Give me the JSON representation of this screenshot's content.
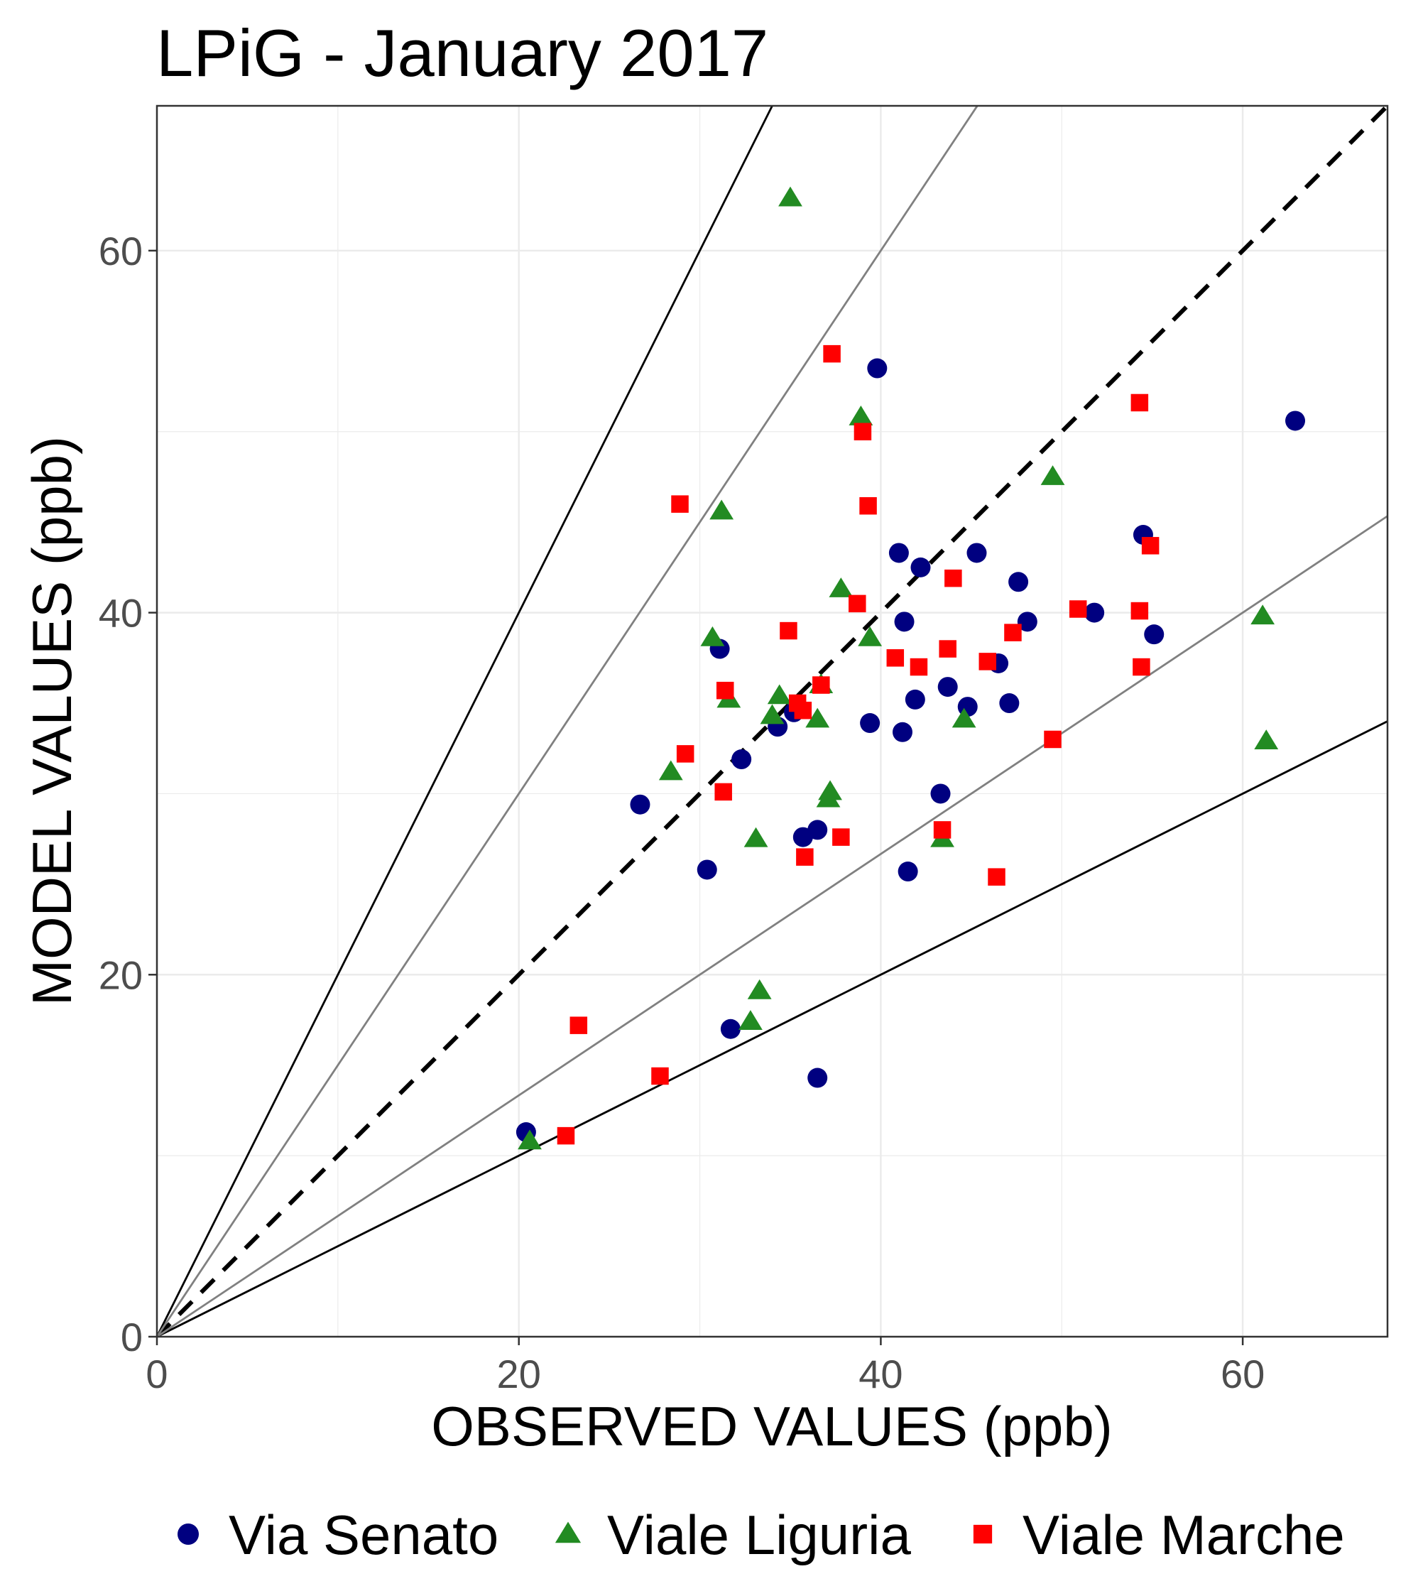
{
  "chart_data": {
    "type": "scatter",
    "title": "LPiG - January 2017",
    "xlabel": "OBSERVED VALUES (ppb)",
    "ylabel": "MODEL VALUES (ppb)",
    "xlim": [
      0,
      68
    ],
    "ylim": [
      0,
      68
    ],
    "x_ticks": [
      0,
      20,
      40,
      60
    ],
    "y_ticks": [
      0,
      20,
      40,
      60
    ],
    "x_tick_labels": [
      "0",
      "20",
      "40",
      "60"
    ],
    "y_tick_labels": [
      "0",
      "20",
      "40",
      "60"
    ],
    "grid": true,
    "legend_position": "bottom",
    "reference_lines": [
      {
        "name": "1:1",
        "slope": 1,
        "style": "dashed",
        "color": "#000000"
      },
      {
        "name": "factor-2-upper",
        "slope": 2,
        "style": "solid",
        "color": "#000000"
      },
      {
        "name": "factor-2-lower",
        "slope": 0.5,
        "style": "solid",
        "color": "#000000"
      },
      {
        "name": "factor-1.5-upper",
        "slope": 1.5,
        "style": "solid",
        "color": "#808080"
      },
      {
        "name": "factor-1.5-lower",
        "slope": 0.6667,
        "style": "solid",
        "color": "#808080"
      }
    ],
    "series": [
      {
        "name": "Via Senato",
        "marker": "circle",
        "color": "#000080",
        "points": [
          [
            20.4,
            11.3
          ],
          [
            26.7,
            29.4
          ],
          [
            30.4,
            25.8
          ],
          [
            31.1,
            38.0
          ],
          [
            31.7,
            17.0
          ],
          [
            32.3,
            31.9
          ],
          [
            34.3,
            33.7
          ],
          [
            35.2,
            34.5
          ],
          [
            35.7,
            27.6
          ],
          [
            36.5,
            28.0
          ],
          [
            36.5,
            14.3
          ],
          [
            39.4,
            33.9
          ],
          [
            39.8,
            53.5
          ],
          [
            41.0,
            43.3
          ],
          [
            41.2,
            33.4
          ],
          [
            41.3,
            39.5
          ],
          [
            41.5,
            25.7
          ],
          [
            41.9,
            35.2
          ],
          [
            42.2,
            42.5
          ],
          [
            43.3,
            30.0
          ],
          [
            43.7,
            35.9
          ],
          [
            44.8,
            34.8
          ],
          [
            45.3,
            43.3
          ],
          [
            46.5,
            37.2
          ],
          [
            47.1,
            35.0
          ],
          [
            47.6,
            41.7
          ],
          [
            48.1,
            39.5
          ],
          [
            51.8,
            40.0
          ],
          [
            54.5,
            44.3
          ],
          [
            55.1,
            38.8
          ],
          [
            62.9,
            50.6
          ]
        ]
      },
      {
        "name": "Viale Liguria",
        "marker": "triangle",
        "color": "#228B22",
        "points": [
          [
            20.6,
            10.8
          ],
          [
            28.4,
            31.2
          ],
          [
            30.7,
            38.6
          ],
          [
            31.2,
            45.6
          ],
          [
            31.6,
            35.2
          ],
          [
            32.8,
            17.4
          ],
          [
            33.1,
            27.5
          ],
          [
            33.3,
            19.1
          ],
          [
            34.0,
            34.3
          ],
          [
            34.4,
            35.4
          ],
          [
            35.0,
            62.9
          ],
          [
            36.5,
            34.1
          ],
          [
            36.7,
            36.0
          ],
          [
            37.1,
            29.7
          ],
          [
            37.2,
            30.1
          ],
          [
            37.8,
            41.3
          ],
          [
            38.9,
            50.8
          ],
          [
            39.4,
            38.6
          ],
          [
            43.4,
            27.5
          ],
          [
            44.6,
            34.1
          ],
          [
            49.5,
            47.5
          ],
          [
            61.1,
            39.8
          ],
          [
            61.3,
            32.9
          ]
        ]
      },
      {
        "name": "Viale Marche",
        "marker": "square",
        "color": "#FF0000",
        "points": [
          [
            22.6,
            11.1
          ],
          [
            23.3,
            17.2
          ],
          [
            27.8,
            14.4
          ],
          [
            28.9,
            46.0
          ],
          [
            29.2,
            32.2
          ],
          [
            31.3,
            30.1
          ],
          [
            31.4,
            35.7
          ],
          [
            34.9,
            39.0
          ],
          [
            35.4,
            35.0
          ],
          [
            35.7,
            34.6
          ],
          [
            35.8,
            26.5
          ],
          [
            36.7,
            36.0
          ],
          [
            37.3,
            54.3
          ],
          [
            37.8,
            27.6
          ],
          [
            38.7,
            40.5
          ],
          [
            39.0,
            50.0
          ],
          [
            39.3,
            45.9
          ],
          [
            40.8,
            37.5
          ],
          [
            42.1,
            37.0
          ],
          [
            43.4,
            28.0
          ],
          [
            43.7,
            38.0
          ],
          [
            44.0,
            41.9
          ],
          [
            45.9,
            37.3
          ],
          [
            46.4,
            25.4
          ],
          [
            47.3,
            38.9
          ],
          [
            49.5,
            33.0
          ],
          [
            50.9,
            40.2
          ],
          [
            54.3,
            40.1
          ],
          [
            54.3,
            51.6
          ],
          [
            54.4,
            37.0
          ],
          [
            54.9,
            43.7
          ]
        ]
      }
    ]
  }
}
